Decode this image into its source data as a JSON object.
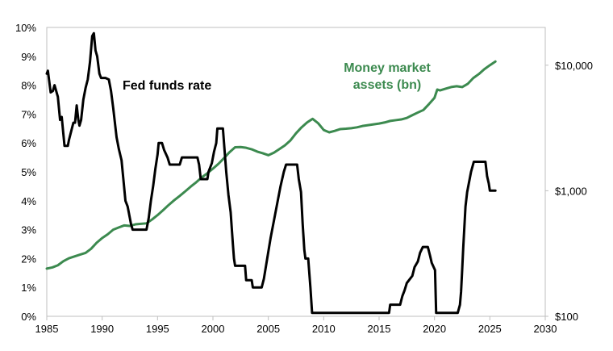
{
  "chart_data": {
    "type": "line",
    "title": "",
    "xlabel": "",
    "ylabel_left": "",
    "ylabel_right": "",
    "x_range": [
      1985,
      2030
    ],
    "x_ticks": [
      "1985",
      "1990",
      "1995",
      "2000",
      "2005",
      "2010",
      "2015",
      "2020",
      "2025",
      "2030"
    ],
    "y_left_range": [
      0,
      10
    ],
    "y_left_ticks": [
      "0%",
      "1%",
      "2%",
      "3%",
      "4%",
      "5%",
      "6%",
      "7%",
      "8%",
      "9%",
      "10%"
    ],
    "y_right_scale": "log",
    "y_right_range": [
      100,
      20000
    ],
    "y_right_ticks": [
      {
        "value": 100,
        "label": "$100"
      },
      {
        "value": 1000,
        "label": "$1,000"
      },
      {
        "value": 10000,
        "label": "$10,000"
      }
    ],
    "grid": false,
    "series": [
      {
        "name": "Fed funds rate",
        "axis": "left",
        "color": "#000000",
        "points": [
          [
            1985.0,
            8.4
          ],
          [
            1985.1,
            8.5
          ],
          [
            1985.2,
            8.2
          ],
          [
            1985.35,
            7.75
          ],
          [
            1985.55,
            7.8
          ],
          [
            1985.7,
            8.0
          ],
          [
            1985.85,
            7.8
          ],
          [
            1986.0,
            7.6
          ],
          [
            1986.2,
            6.8
          ],
          [
            1986.35,
            6.9
          ],
          [
            1986.5,
            6.3
          ],
          [
            1986.6,
            5.9
          ],
          [
            1986.9,
            5.9
          ],
          [
            1987.0,
            6.1
          ],
          [
            1987.2,
            6.4
          ],
          [
            1987.4,
            6.7
          ],
          [
            1987.55,
            6.7
          ],
          [
            1987.7,
            7.3
          ],
          [
            1987.85,
            6.8
          ],
          [
            1987.95,
            6.6
          ],
          [
            1988.1,
            6.8
          ],
          [
            1988.3,
            7.5
          ],
          [
            1988.5,
            7.9
          ],
          [
            1988.7,
            8.2
          ],
          [
            1988.9,
            8.8
          ],
          [
            1989.1,
            9.7
          ],
          [
            1989.25,
            9.8
          ],
          [
            1989.4,
            9.2
          ],
          [
            1989.55,
            9.0
          ],
          [
            1989.75,
            8.4
          ],
          [
            1989.9,
            8.25
          ],
          [
            1990.0,
            8.25
          ],
          [
            1990.3,
            8.25
          ],
          [
            1990.6,
            8.2
          ],
          [
            1990.8,
            7.8
          ],
          [
            1991.0,
            7.2
          ],
          [
            1991.3,
            6.2
          ],
          [
            1991.5,
            5.8
          ],
          [
            1991.75,
            5.4
          ],
          [
            1991.9,
            4.8
          ],
          [
            1992.1,
            4.0
          ],
          [
            1992.3,
            3.8
          ],
          [
            1992.6,
            3.2
          ],
          [
            1992.75,
            3.0
          ],
          [
            1993.0,
            3.0
          ],
          [
            1994.0,
            3.0
          ],
          [
            1994.2,
            3.4
          ],
          [
            1994.4,
            4.0
          ],
          [
            1994.6,
            4.5
          ],
          [
            1994.8,
            5.1
          ],
          [
            1995.0,
            5.6
          ],
          [
            1995.1,
            6.0
          ],
          [
            1995.4,
            6.0
          ],
          [
            1995.6,
            5.75
          ],
          [
            1995.9,
            5.5
          ],
          [
            1996.1,
            5.25
          ],
          [
            1997.0,
            5.25
          ],
          [
            1997.2,
            5.5
          ],
          [
            1998.6,
            5.5
          ],
          [
            1998.75,
            5.25
          ],
          [
            1998.9,
            4.75
          ],
          [
            1999.5,
            4.75
          ],
          [
            1999.6,
            5.0
          ],
          [
            1999.9,
            5.3
          ],
          [
            2000.1,
            5.7
          ],
          [
            2000.3,
            6.0
          ],
          [
            2000.4,
            6.5
          ],
          [
            2000.9,
            6.5
          ],
          [
            2001.0,
            6.0
          ],
          [
            2001.2,
            5.0
          ],
          [
            2001.4,
            4.2
          ],
          [
            2001.6,
            3.6
          ],
          [
            2001.8,
            2.5
          ],
          [
            2001.9,
            2.0
          ],
          [
            2002.0,
            1.75
          ],
          [
            2002.9,
            1.75
          ],
          [
            2003.0,
            1.25
          ],
          [
            2003.5,
            1.25
          ],
          [
            2003.6,
            1.0
          ],
          [
            2004.4,
            1.0
          ],
          [
            2004.6,
            1.3
          ],
          [
            2004.9,
            2.0
          ],
          [
            2005.2,
            2.7
          ],
          [
            2005.5,
            3.3
          ],
          [
            2005.8,
            3.9
          ],
          [
            2006.1,
            4.5
          ],
          [
            2006.4,
            5.0
          ],
          [
            2006.6,
            5.25
          ],
          [
            2007.6,
            5.25
          ],
          [
            2007.75,
            4.75
          ],
          [
            2007.95,
            4.3
          ],
          [
            2008.1,
            3.2
          ],
          [
            2008.25,
            2.3
          ],
          [
            2008.35,
            2.0
          ],
          [
            2008.6,
            2.0
          ],
          [
            2008.8,
            1.0
          ],
          [
            2008.95,
            0.12
          ],
          [
            2015.9,
            0.12
          ],
          [
            2016.0,
            0.4
          ],
          [
            2016.9,
            0.4
          ],
          [
            2017.1,
            0.7
          ],
          [
            2017.3,
            0.9
          ],
          [
            2017.5,
            1.15
          ],
          [
            2017.8,
            1.3
          ],
          [
            2018.0,
            1.4
          ],
          [
            2018.2,
            1.7
          ],
          [
            2018.5,
            1.9
          ],
          [
            2018.7,
            2.2
          ],
          [
            2018.95,
            2.4
          ],
          [
            2019.4,
            2.4
          ],
          [
            2019.6,
            2.1
          ],
          [
            2019.75,
            1.85
          ],
          [
            2020.05,
            1.6
          ],
          [
            2020.15,
            0.12
          ],
          [
            2022.1,
            0.12
          ],
          [
            2022.3,
            0.4
          ],
          [
            2022.4,
            0.85
          ],
          [
            2022.5,
            1.6
          ],
          [
            2022.6,
            2.4
          ],
          [
            2022.7,
            3.1
          ],
          [
            2022.8,
            3.8
          ],
          [
            2022.95,
            4.3
          ],
          [
            2023.1,
            4.6
          ],
          [
            2023.3,
            5.0
          ],
          [
            2023.55,
            5.35
          ],
          [
            2024.6,
            5.35
          ],
          [
            2024.75,
            4.85
          ],
          [
            2024.9,
            4.6
          ],
          [
            2025.0,
            4.35
          ],
          [
            2025.5,
            4.35
          ]
        ]
      },
      {
        "name": "Money market assets (bn)",
        "axis": "right",
        "color": "#3c8a4f",
        "points": [
          [
            1985.0,
            240
          ],
          [
            1985.5,
            245
          ],
          [
            1986.0,
            255
          ],
          [
            1986.5,
            275
          ],
          [
            1987.0,
            290
          ],
          [
            1987.5,
            300
          ],
          [
            1988.0,
            310
          ],
          [
            1988.5,
            320
          ],
          [
            1989.0,
            345
          ],
          [
            1989.5,
            385
          ],
          [
            1990.0,
            420
          ],
          [
            1990.5,
            450
          ],
          [
            1991.0,
            490
          ],
          [
            1991.5,
            510
          ],
          [
            1992.0,
            530
          ],
          [
            1992.5,
            525
          ],
          [
            1993.0,
            540
          ],
          [
            1993.5,
            545
          ],
          [
            1994.0,
            550
          ],
          [
            1994.5,
            590
          ],
          [
            1995.0,
            640
          ],
          [
            1995.5,
            700
          ],
          [
            1996.0,
            770
          ],
          [
            1996.5,
            840
          ],
          [
            1997.0,
            910
          ],
          [
            1997.5,
            990
          ],
          [
            1998.0,
            1080
          ],
          [
            1998.5,
            1170
          ],
          [
            1999.0,
            1280
          ],
          [
            1999.5,
            1380
          ],
          [
            2000.0,
            1500
          ],
          [
            2000.5,
            1640
          ],
          [
            2001.0,
            1820
          ],
          [
            2001.5,
            2030
          ],
          [
            2002.0,
            2220
          ],
          [
            2002.5,
            2230
          ],
          [
            2003.0,
            2200
          ],
          [
            2003.5,
            2140
          ],
          [
            2004.0,
            2050
          ],
          [
            2004.5,
            1990
          ],
          [
            2005.0,
            1920
          ],
          [
            2005.5,
            2010
          ],
          [
            2006.0,
            2150
          ],
          [
            2006.5,
            2300
          ],
          [
            2007.0,
            2520
          ],
          [
            2007.5,
            2870
          ],
          [
            2008.0,
            3200
          ],
          [
            2008.5,
            3500
          ],
          [
            2009.0,
            3740
          ],
          [
            2009.5,
            3450
          ],
          [
            2010.0,
            3050
          ],
          [
            2010.5,
            2920
          ],
          [
            2011.0,
            3000
          ],
          [
            2011.5,
            3100
          ],
          [
            2012.0,
            3120
          ],
          [
            2012.5,
            3150
          ],
          [
            2013.0,
            3200
          ],
          [
            2013.5,
            3280
          ],
          [
            2014.0,
            3330
          ],
          [
            2014.5,
            3380
          ],
          [
            2015.0,
            3430
          ],
          [
            2015.5,
            3500
          ],
          [
            2016.0,
            3600
          ],
          [
            2016.5,
            3650
          ],
          [
            2017.0,
            3700
          ],
          [
            2017.5,
            3800
          ],
          [
            2018.0,
            4000
          ],
          [
            2018.5,
            4200
          ],
          [
            2019.0,
            4400
          ],
          [
            2019.5,
            4900
          ],
          [
            2020.0,
            5500
          ],
          [
            2020.25,
            6400
          ],
          [
            2020.5,
            6300
          ],
          [
            2021.0,
            6500
          ],
          [
            2021.5,
            6700
          ],
          [
            2022.0,
            6800
          ],
          [
            2022.5,
            6700
          ],
          [
            2023.0,
            7100
          ],
          [
            2023.5,
            7900
          ],
          [
            2024.0,
            8500
          ],
          [
            2024.5,
            9300
          ],
          [
            2025.0,
            10000
          ],
          [
            2025.5,
            10700
          ]
        ]
      }
    ],
    "annotations": [
      {
        "text": "Fed funds rate",
        "series": 0
      },
      {
        "text": "Money market",
        "series": 1
      },
      {
        "text": "assets (bn)",
        "series": 1
      }
    ]
  }
}
